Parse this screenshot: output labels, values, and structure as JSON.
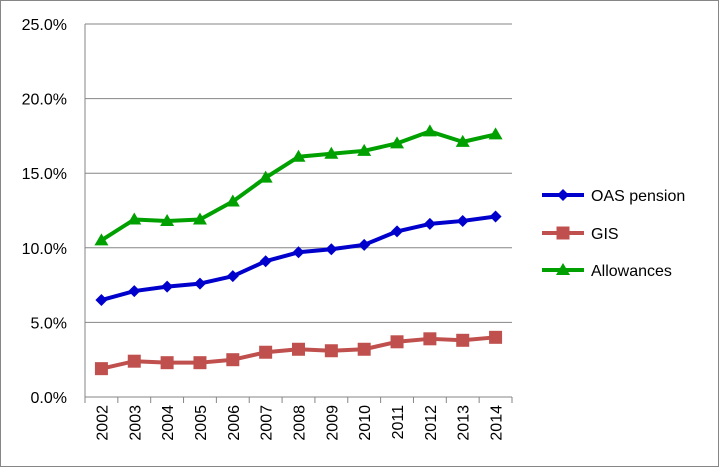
{
  "chart_data": {
    "type": "line",
    "categories": [
      "2002",
      "2003",
      "2004",
      "2005",
      "2006",
      "2007",
      "2008",
      "2009",
      "2010",
      "2011",
      "2012",
      "2013",
      "2014"
    ],
    "ylim": [
      0,
      25
    ],
    "ytick_values": [
      0,
      5,
      10,
      15,
      20,
      25
    ],
    "ytick_labels": [
      "0.0%",
      "5.0%",
      "10.0%",
      "15.0%",
      "20.0%",
      "25.0%"
    ],
    "grid": true,
    "legend_position": "right",
    "series": [
      {
        "name": "OAS pension",
        "color": "#0000CC",
        "marker": "diamond",
        "values": [
          6.5,
          7.1,
          7.4,
          7.6,
          8.1,
          9.1,
          9.7,
          9.9,
          10.2,
          11.1,
          11.6,
          11.8,
          12.1
        ]
      },
      {
        "name": "GIS",
        "color": "#C0504D",
        "marker": "square",
        "values": [
          1.9,
          2.4,
          2.3,
          2.3,
          2.5,
          3.0,
          3.2,
          3.1,
          3.2,
          3.7,
          3.9,
          3.8,
          4.0
        ]
      },
      {
        "name": "Allowances",
        "color": "#00A000",
        "marker": "triangle",
        "values": [
          10.5,
          11.9,
          11.8,
          11.9,
          13.1,
          14.7,
          16.1,
          16.3,
          16.5,
          17.0,
          17.8,
          17.1,
          17.6
        ]
      }
    ]
  }
}
